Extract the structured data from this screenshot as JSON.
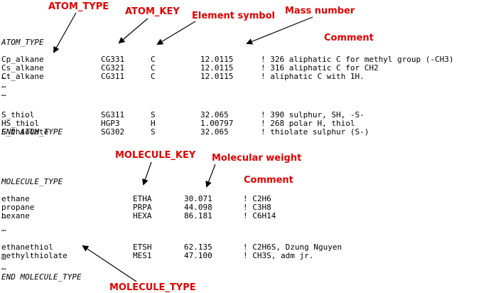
{
  "labels": {
    "atom_type": "ATOM_TYPE",
    "atom_key": "ATOM_KEY",
    "element_symbol": "Element symbol",
    "mass_number": "Mass number",
    "comment_atom": "Comment",
    "molecule_key": "MOLECULE_KEY",
    "molecular_weight": "Molecular weight",
    "comment_molecule": "Comment",
    "molecule_type": "MOLECULE_TYPE"
  },
  "atom_section": {
    "header": "ATOM_TYPE",
    "footer": "END ATOM_TYPE",
    "rows": [
      {
        "name": "Cp_alkane",
        "key": "CG331",
        "symbol": "C",
        "mass": "12.0115",
        "comment": "! 326 aliphatic C for methyl group (-CH3)"
      },
      {
        "name": "Cs_alkane",
        "key": "CG321",
        "symbol": "C",
        "mass": "12.0115",
        "comment": "! 316 aliphatic C for CH2"
      },
      {
        "name": "Ct_alkane",
        "key": "CG311",
        "symbol": "C",
        "mass": "12.0115",
        "comment": "! aliphatic C with 1H."
      },
      {
        "name": "…"
      },
      {
        "name": "…"
      },
      {
        "name": "…"
      },
      {
        "name": "S_thiol",
        "key": "SG311",
        "symbol": "S",
        "mass": "32.065",
        "comment": "! 390 sulphur, SH, -S-"
      },
      {
        "name": "HS_thiol",
        "key": "HGP3",
        "symbol": "H",
        "mass": "1.00797",
        "comment": "! 268 polar H, thiol"
      },
      {
        "name": "S_thiolate",
        "key": "SG302",
        "symbol": "S",
        "mass": "32.065",
        "comment": "! thiolate sulphur (S-)"
      }
    ]
  },
  "molecule_section": {
    "header": "MOLECULE_TYPE",
    "footer": "END MOLECULE_TYPE",
    "rows": [
      {
        "name": "ethane",
        "key": "ETHA",
        "weight": "30.071",
        "comment": "! C2H6"
      },
      {
        "name": "propane",
        "key": "PRPA",
        "weight": "44.098",
        "comment": "! C3H8"
      },
      {
        "name": "hexane",
        "key": "HEXA",
        "weight": "86.181",
        "comment": "! C6H14"
      },
      {
        "name": "…"
      },
      {
        "name": "…"
      },
      {
        "name": "ethanethiol",
        "key": "ETSH",
        "weight": "62.135",
        "comment": "! C2H6S, Dzung Nguyen"
      },
      {
        "name": "methylthiolate",
        "key": "MES1",
        "weight": "47.100",
        "comment": "! CH3S, adm jr."
      },
      {
        "name": "…"
      },
      {
        "name": "…"
      }
    ]
  },
  "colors": {
    "label": "#e00000",
    "text": "#000000",
    "background": "#ffffff"
  }
}
